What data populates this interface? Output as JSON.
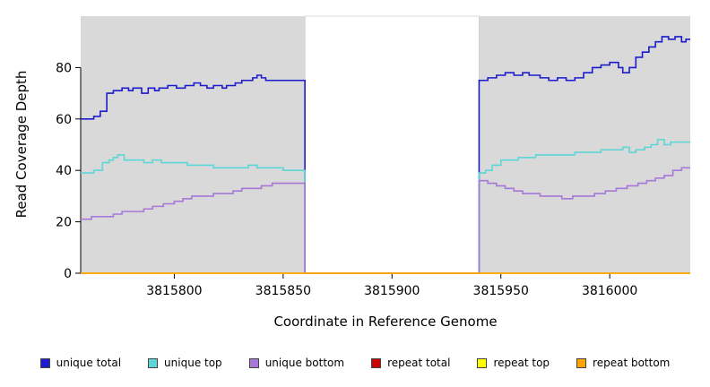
{
  "chart_data": {
    "type": "line",
    "interpolation": "step-after",
    "title": "",
    "xlabel": "Coordinate in Reference Genome",
    "ylabel": "Read Coverage Depth",
    "xlim": [
      3815757,
      3816037
    ],
    "ylim": [
      0,
      100
    ],
    "xticks": [
      3815800,
      3815850,
      3815900,
      3815950,
      3816000
    ],
    "yticks": [
      0,
      20,
      40,
      60,
      80
    ],
    "panel_bg": "#d9d9d9",
    "gap_region": {
      "from": 3815860,
      "to": 3815940,
      "fill": "#ffffff"
    },
    "legend_position": "bottom",
    "grid": false,
    "series": [
      {
        "name": "unique total",
        "color": "#1c1ccd",
        "points": [
          [
            3815757,
            60
          ],
          [
            3815763,
            61
          ],
          [
            3815766,
            63
          ],
          [
            3815769,
            70
          ],
          [
            3815772,
            71
          ],
          [
            3815776,
            72
          ],
          [
            3815779,
            71
          ],
          [
            3815781,
            72
          ],
          [
            3815785,
            70
          ],
          [
            3815788,
            72
          ],
          [
            3815791,
            71
          ],
          [
            3815793,
            72
          ],
          [
            3815797,
            73
          ],
          [
            3815801,
            72
          ],
          [
            3815805,
            73
          ],
          [
            3815809,
            74
          ],
          [
            3815812,
            73
          ],
          [
            3815815,
            72
          ],
          [
            3815818,
            73
          ],
          [
            3815822,
            72
          ],
          [
            3815824,
            73
          ],
          [
            3815828,
            74
          ],
          [
            3815831,
            75
          ],
          [
            3815836,
            76
          ],
          [
            3815838,
            77
          ],
          [
            3815840,
            76
          ],
          [
            3815842,
            75
          ],
          [
            3815860,
            0
          ],
          [
            3815940,
            75
          ],
          [
            3815944,
            76
          ],
          [
            3815948,
            77
          ],
          [
            3815952,
            78
          ],
          [
            3815956,
            77
          ],
          [
            3815960,
            78
          ],
          [
            3815963,
            77
          ],
          [
            3815968,
            76
          ],
          [
            3815972,
            75
          ],
          [
            3815976,
            76
          ],
          [
            3815980,
            75
          ],
          [
            3815984,
            76
          ],
          [
            3815988,
            78
          ],
          [
            3815992,
            80
          ],
          [
            3815996,
            81
          ],
          [
            3816000,
            82
          ],
          [
            3816004,
            80
          ],
          [
            3816006,
            78
          ],
          [
            3816009,
            80
          ],
          [
            3816012,
            84
          ],
          [
            3816015,
            86
          ],
          [
            3816018,
            88
          ],
          [
            3816021,
            90
          ],
          [
            3816024,
            92
          ],
          [
            3816027,
            91
          ],
          [
            3816030,
            92
          ],
          [
            3816033,
            90
          ],
          [
            3816035,
            91
          ],
          [
            3816037,
            91
          ]
        ]
      },
      {
        "name": "unique top",
        "color": "#5cd6d6",
        "points": [
          [
            3815757,
            39
          ],
          [
            3815763,
            40
          ],
          [
            3815767,
            43
          ],
          [
            3815770,
            44
          ],
          [
            3815772,
            45
          ],
          [
            3815774,
            46
          ],
          [
            3815777,
            44
          ],
          [
            3815782,
            44
          ],
          [
            3815786,
            43
          ],
          [
            3815790,
            44
          ],
          [
            3815794,
            43
          ],
          [
            3815800,
            43
          ],
          [
            3815806,
            42
          ],
          [
            3815812,
            42
          ],
          [
            3815818,
            41
          ],
          [
            3815824,
            41
          ],
          [
            3815830,
            41
          ],
          [
            3815834,
            42
          ],
          [
            3815838,
            41
          ],
          [
            3815844,
            41
          ],
          [
            3815850,
            40
          ],
          [
            3815856,
            40
          ],
          [
            3815860,
            0
          ],
          [
            3815940,
            39
          ],
          [
            3815943,
            40
          ],
          [
            3815946,
            42
          ],
          [
            3815950,
            44
          ],
          [
            3815954,
            44
          ],
          [
            3815958,
            45
          ],
          [
            3815962,
            45
          ],
          [
            3815966,
            46
          ],
          [
            3815972,
            46
          ],
          [
            3815978,
            46
          ],
          [
            3815984,
            47
          ],
          [
            3815990,
            47
          ],
          [
            3815996,
            48
          ],
          [
            3816002,
            48
          ],
          [
            3816006,
            49
          ],
          [
            3816009,
            47
          ],
          [
            3816012,
            48
          ],
          [
            3816016,
            49
          ],
          [
            3816019,
            50
          ],
          [
            3816022,
            52
          ],
          [
            3816025,
            50
          ],
          [
            3816028,
            51
          ],
          [
            3816032,
            51
          ],
          [
            3816037,
            51
          ]
        ]
      },
      {
        "name": "unique bottom",
        "color": "#a678d8",
        "points": [
          [
            3815757,
            21
          ],
          [
            3815762,
            22
          ],
          [
            3815768,
            22
          ],
          [
            3815772,
            23
          ],
          [
            3815776,
            24
          ],
          [
            3815781,
            24
          ],
          [
            3815786,
            25
          ],
          [
            3815790,
            26
          ],
          [
            3815795,
            27
          ],
          [
            3815800,
            28
          ],
          [
            3815804,
            29
          ],
          [
            3815808,
            30
          ],
          [
            3815813,
            30
          ],
          [
            3815818,
            31
          ],
          [
            3815822,
            31
          ],
          [
            3815827,
            32
          ],
          [
            3815831,
            33
          ],
          [
            3815836,
            33
          ],
          [
            3815840,
            34
          ],
          [
            3815845,
            35
          ],
          [
            3815850,
            35
          ],
          [
            3815856,
            35
          ],
          [
            3815860,
            0
          ],
          [
            3815940,
            36
          ],
          [
            3815944,
            35
          ],
          [
            3815948,
            34
          ],
          [
            3815952,
            33
          ],
          [
            3815956,
            32
          ],
          [
            3815960,
            31
          ],
          [
            3815964,
            31
          ],
          [
            3815968,
            30
          ],
          [
            3815973,
            30
          ],
          [
            3815978,
            29
          ],
          [
            3815983,
            30
          ],
          [
            3815988,
            30
          ],
          [
            3815993,
            31
          ],
          [
            3815998,
            32
          ],
          [
            3816003,
            33
          ],
          [
            3816008,
            34
          ],
          [
            3816013,
            35
          ],
          [
            3816017,
            36
          ],
          [
            3816021,
            37
          ],
          [
            3816025,
            38
          ],
          [
            3816029,
            40
          ],
          [
            3816033,
            41
          ],
          [
            3816037,
            41
          ]
        ]
      },
      {
        "name": "repeat total",
        "color": "#cc0000",
        "points": [
          [
            3815757,
            0
          ],
          [
            3816037,
            0
          ]
        ]
      },
      {
        "name": "repeat top",
        "color": "#ffff00",
        "points": [
          [
            3815757,
            0
          ],
          [
            3816037,
            0
          ]
        ]
      },
      {
        "name": "repeat bottom",
        "color": "#ffa500",
        "points": [
          [
            3815757,
            0
          ],
          [
            3816037,
            0
          ]
        ]
      }
    ]
  }
}
